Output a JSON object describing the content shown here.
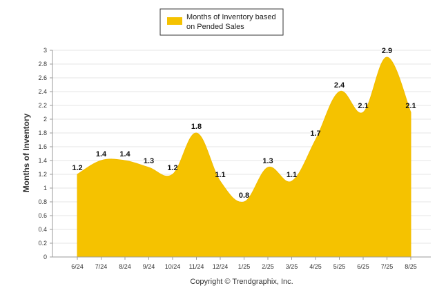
{
  "chart_data": {
    "type": "area",
    "categories": [
      "6/24",
      "7/24",
      "8/24",
      "9/24",
      "10/24",
      "11/24",
      "12/24",
      "1/25",
      "2/25",
      "3/25",
      "4/25",
      "5/25",
      "6/25",
      "7/25",
      "8/25"
    ],
    "series": [
      {
        "name": "Months of Inventory based on Pended Sales",
        "values": [
          1.2,
          1.4,
          1.4,
          1.3,
          1.2,
          1.8,
          1.1,
          0.8,
          1.3,
          1.1,
          1.7,
          2.4,
          2.1,
          2.9,
          2.1
        ]
      }
    ],
    "data_labels": [
      "1.2",
      "1.4",
      "1.4",
      "1.3",
      "1.2",
      "1.8",
      "1.1",
      "0.8",
      "1.3",
      "1.1",
      "1.7",
      "2.4",
      "2.1",
      "2.9",
      "2.1"
    ],
    "ylabel": "Months of Inventory",
    "ylim": [
      0,
      3
    ],
    "yticks": [
      "0",
      "0.2",
      "0.4",
      "0.6",
      "0.8",
      "1",
      "1.2",
      "1.4",
      "1.6",
      "1.8",
      "2",
      "2.2",
      "2.4",
      "2.6",
      "2.8",
      "3"
    ],
    "grid": true,
    "legend_position": "top-center",
    "colors": {
      "fill": "#F5C200",
      "stroke": "#F2BC00",
      "grid": "#e6e6e6",
      "axis": "#9a9a9a"
    }
  },
  "legend": {
    "line1": "Months of Inventory based",
    "line2": "on Pended Sales"
  },
  "footer": {
    "copyright": "Copyright © Trendgraphix, Inc."
  }
}
